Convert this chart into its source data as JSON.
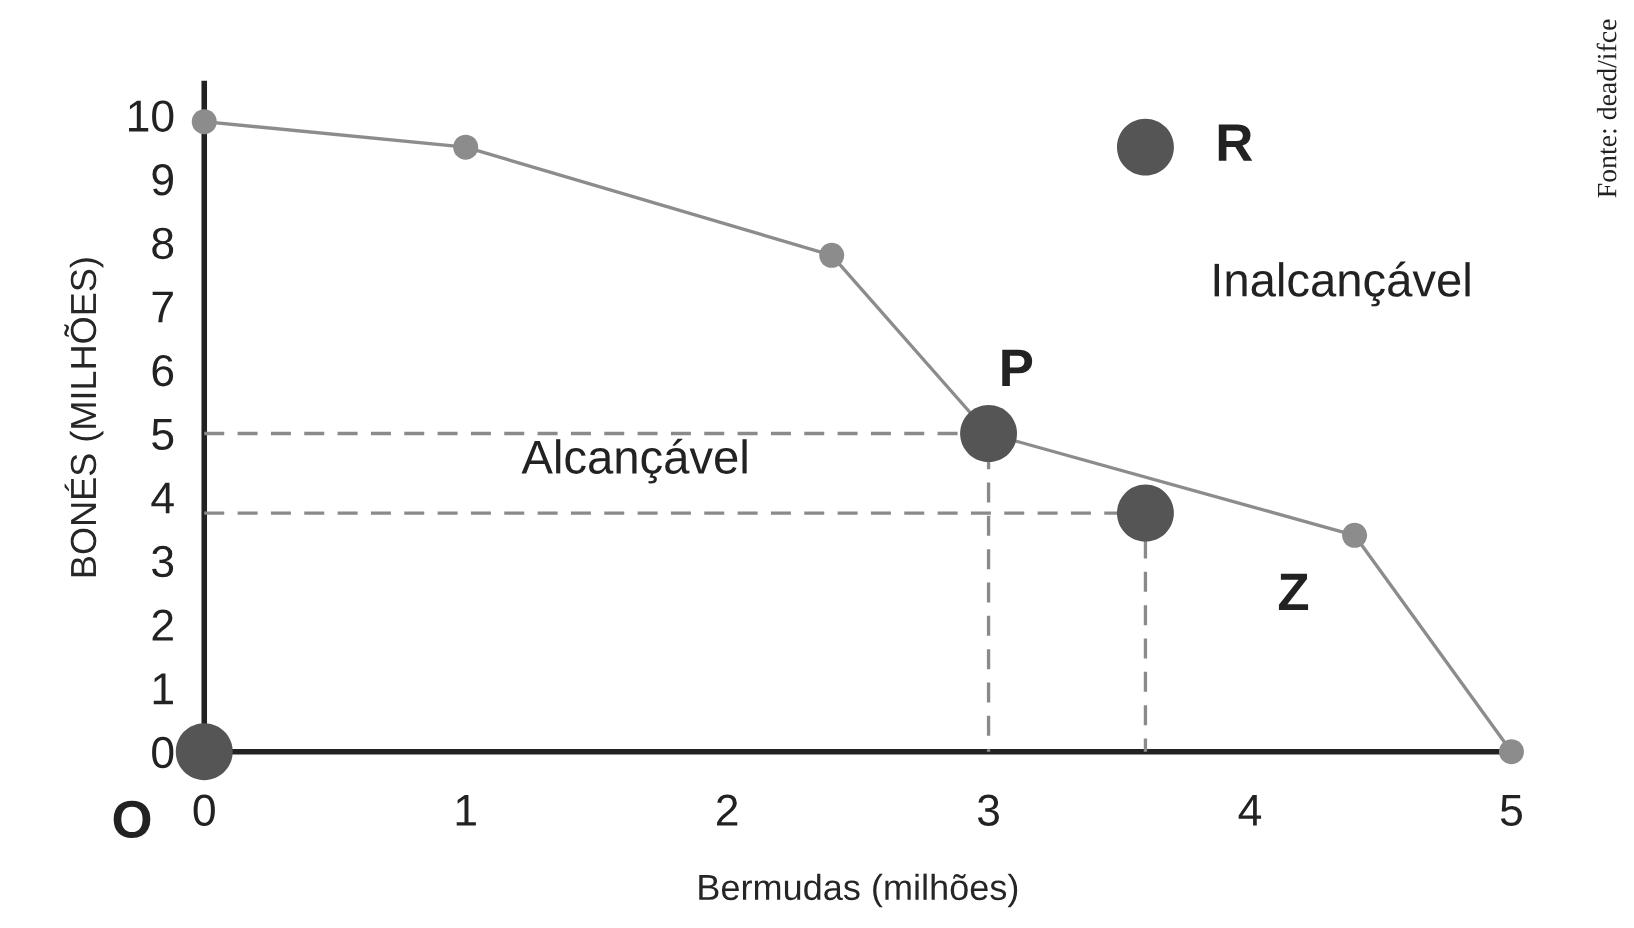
{
  "chart_data": {
    "type": "line",
    "xlabel": "Bermudas (milhões)",
    "ylabel": "BONÉS (MILHÕES)",
    "xlim": [
      0,
      5
    ],
    "ylim": [
      0,
      10.5
    ],
    "xticks": [
      0,
      1,
      2,
      3,
      4,
      5
    ],
    "yticks": [
      0,
      1,
      2,
      3,
      4,
      5,
      6,
      7,
      8,
      9,
      10
    ],
    "grid": false,
    "series": [
      {
        "color": "#8c8c8c",
        "marker": "circle",
        "line_style": "solid",
        "x": [
          0,
          1,
          2.4,
          3,
          4.4,
          5
        ],
        "values": [
          9.9,
          9.5,
          7.8,
          5,
          3.4,
          0
        ]
      },
      {
        "color": "#8a8a8a",
        "marker": "none",
        "line_style": "dashed",
        "x": [
          0,
          3,
          3
        ],
        "values": [
          5,
          5,
          0
        ]
      },
      {
        "color": "#8a8a8a",
        "marker": "none",
        "line_style": "dashed",
        "x": [
          0,
          3.6,
          3.6
        ],
        "values": [
          3.75,
          3.75,
          0
        ]
      },
      {
        "type": "scatter",
        "color": "#555555",
        "marker": "circle",
        "x": [
          0,
          3,
          3.6,
          3.6
        ],
        "values": [
          0,
          5,
          3.75,
          9.5
        ]
      }
    ],
    "annotations": [
      {
        "text": "O",
        "x": 0,
        "y": 0
      },
      {
        "text": "P",
        "x": 3,
        "y": 5
      },
      {
        "text": "R",
        "x": 3.6,
        "y": 9.5
      },
      {
        "text": "Z",
        "x": 4.4,
        "y": 3.4
      },
      "Alcançável",
      "Inalcançável",
      "Fonte: dead/ifce"
    ]
  }
}
